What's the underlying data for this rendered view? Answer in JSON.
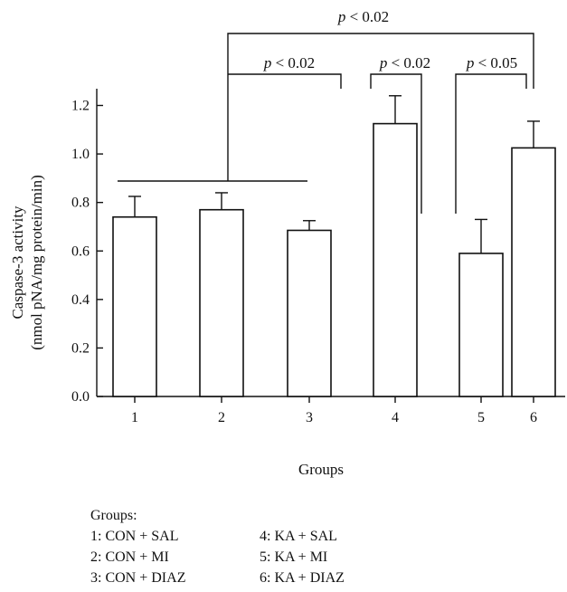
{
  "chart_data": {
    "type": "bar",
    "categories": [
      "1",
      "2",
      "3",
      "4",
      "5",
      "6"
    ],
    "values": [
      0.74,
      0.77,
      0.685,
      1.125,
      0.59,
      1.025
    ],
    "errors": [
      0.085,
      0.07,
      0.04,
      0.115,
      0.14,
      0.11
    ],
    "title": "",
    "xlabel": "Groups",
    "ylabel_line1": "Caspase-3 activity",
    "ylabel_line2": "(nmol pNA/mg protein/min)",
    "ylim": [
      0,
      1.25
    ],
    "yticks": [
      "0.0",
      "0.2",
      "0.4",
      "0.6",
      "0.8",
      "1.0",
      "1.2"
    ],
    "ytick_values": [
      0,
      0.2,
      0.4,
      0.6,
      0.8,
      1.0,
      1.2
    ],
    "grid": false,
    "significance": [
      {
        "p_prefix": "p",
        "p_rest": " < 0.02",
        "comparison": "groups 1–3 vs 6"
      },
      {
        "p_prefix": "p",
        "p_rest": " < 0.02",
        "comparison": "groups 1–3 vs 4"
      },
      {
        "p_prefix": "p",
        "p_rest": " < 0.02",
        "comparison": "4 vs 5"
      },
      {
        "p_prefix": "p",
        "p_rest": " < 0.05",
        "comparison": "5 vs 6"
      }
    ]
  },
  "legend": {
    "title": "Groups:",
    "items": [
      "1: CON + SAL",
      "4: KA + SAL",
      "2: CON + MI",
      "5: KA + MI",
      "3: CON + DIAZ",
      "6: KA + DIAZ"
    ]
  }
}
